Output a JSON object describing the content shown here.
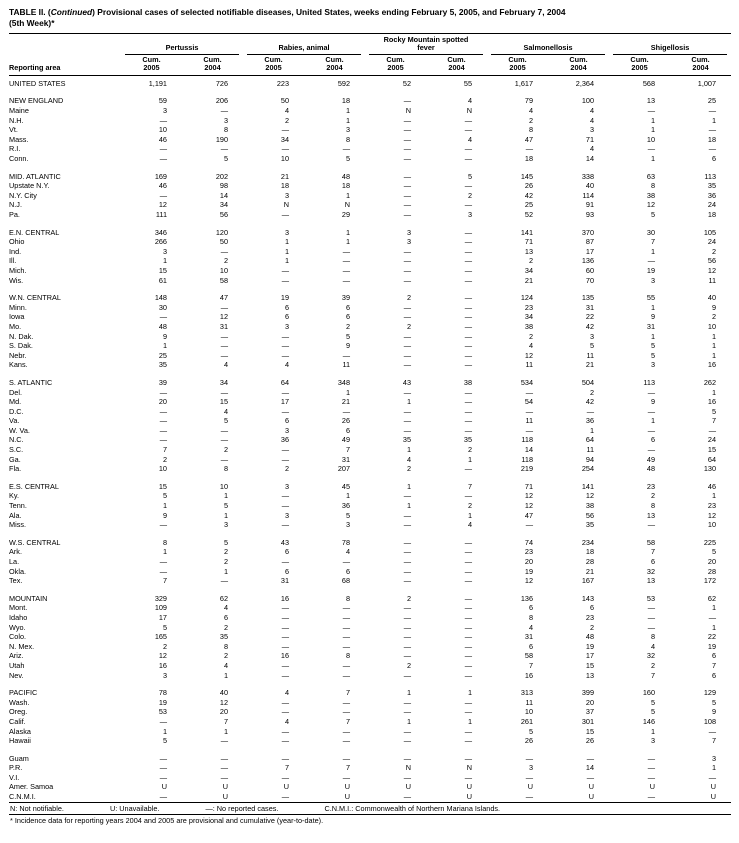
{
  "title": {
    "prefix": "TABLE II. (",
    "continued": "Continued",
    "rest": ") Provisional cases of selected notifiable diseases, United States, weeks ending February 5, 2005, and February 7, 2004",
    "week": "(5th Week)*"
  },
  "columns": {
    "reporting_area": "Reporting area",
    "groups": [
      "Pertussis",
      "Rabies, animal",
      "Rocky Mountain spotted fever",
      "Salmonellosis",
      "Shigellosis"
    ],
    "sub": {
      "label": "Cum.",
      "years": [
        "2005",
        "2004"
      ]
    }
  },
  "sections": [
    {
      "rows": [
        [
          "UNITED STATES",
          "1,191",
          "726",
          "223",
          "592",
          "52",
          "55",
          "1,617",
          "2,364",
          "568",
          "1,007"
        ]
      ]
    },
    {
      "rows": [
        [
          "NEW ENGLAND",
          "59",
          "206",
          "50",
          "18",
          "—",
          "4",
          "79",
          "100",
          "13",
          "25"
        ],
        [
          "Maine",
          "3",
          "—",
          "4",
          "1",
          "N",
          "N",
          "4",
          "4",
          "—",
          "—"
        ],
        [
          "N.H.",
          "—",
          "3",
          "2",
          "1",
          "—",
          "—",
          "2",
          "4",
          "1",
          "1"
        ],
        [
          "Vt.",
          "10",
          "8",
          "—",
          "3",
          "—",
          "—",
          "8",
          "3",
          "1",
          "—"
        ],
        [
          "Mass.",
          "46",
          "190",
          "34",
          "8",
          "—",
          "4",
          "47",
          "71",
          "10",
          "18"
        ],
        [
          "R.I.",
          "—",
          "—",
          "—",
          "—",
          "—",
          "—",
          "—",
          "4",
          "—",
          "—"
        ],
        [
          "Conn.",
          "—",
          "5",
          "10",
          "5",
          "—",
          "—",
          "18",
          "14",
          "1",
          "6"
        ]
      ]
    },
    {
      "rows": [
        [
          "MID. ATLANTIC",
          "169",
          "202",
          "21",
          "48",
          "—",
          "5",
          "145",
          "338",
          "63",
          "113"
        ],
        [
          "Upstate N.Y.",
          "46",
          "98",
          "18",
          "18",
          "—",
          "—",
          "26",
          "40",
          "8",
          "35"
        ],
        [
          "N.Y. City",
          "—",
          "14",
          "3",
          "1",
          "—",
          "2",
          "42",
          "114",
          "38",
          "36"
        ],
        [
          "N.J.",
          "12",
          "34",
          "N",
          "N",
          "—",
          "—",
          "25",
          "91",
          "12",
          "24"
        ],
        [
          "Pa.",
          "111",
          "56",
          "—",
          "29",
          "—",
          "3",
          "52",
          "93",
          "5",
          "18"
        ]
      ]
    },
    {
      "rows": [
        [
          "E.N. CENTRAL",
          "346",
          "120",
          "3",
          "1",
          "3",
          "—",
          "141",
          "370",
          "30",
          "105"
        ],
        [
          "Ohio",
          "266",
          "50",
          "1",
          "1",
          "3",
          "—",
          "71",
          "87",
          "7",
          "24"
        ],
        [
          "Ind.",
          "3",
          "—",
          "1",
          "—",
          "—",
          "—",
          "13",
          "17",
          "1",
          "2"
        ],
        [
          "Ill.",
          "1",
          "2",
          "1",
          "—",
          "—",
          "—",
          "2",
          "136",
          "—",
          "56"
        ],
        [
          "Mich.",
          "15",
          "10",
          "—",
          "—",
          "—",
          "—",
          "34",
          "60",
          "19",
          "12"
        ],
        [
          "Wis.",
          "61",
          "58",
          "—",
          "—",
          "—",
          "—",
          "21",
          "70",
          "3",
          "11"
        ]
      ]
    },
    {
      "rows": [
        [
          "W.N. CENTRAL",
          "148",
          "47",
          "19",
          "39",
          "2",
          "—",
          "124",
          "135",
          "55",
          "40"
        ],
        [
          "Minn.",
          "30",
          "—",
          "6",
          "6",
          "—",
          "—",
          "23",
          "31",
          "1",
          "9"
        ],
        [
          "Iowa",
          "—",
          "12",
          "6",
          "6",
          "—",
          "—",
          "34",
          "22",
          "9",
          "2"
        ],
        [
          "Mo.",
          "48",
          "31",
          "3",
          "2",
          "2",
          "—",
          "38",
          "42",
          "31",
          "10"
        ],
        [
          "N. Dak.",
          "9",
          "—",
          "—",
          "5",
          "—",
          "—",
          "2",
          "3",
          "1",
          "1"
        ],
        [
          "S. Dak.",
          "1",
          "—",
          "—",
          "9",
          "—",
          "—",
          "4",
          "5",
          "5",
          "1"
        ],
        [
          "Nebr.",
          "25",
          "—",
          "—",
          "—",
          "—",
          "—",
          "12",
          "11",
          "5",
          "1"
        ],
        [
          "Kans.",
          "35",
          "4",
          "4",
          "11",
          "—",
          "—",
          "11",
          "21",
          "3",
          "16"
        ]
      ]
    },
    {
      "rows": [
        [
          "S. ATLANTIC",
          "39",
          "34",
          "64",
          "348",
          "43",
          "38",
          "534",
          "504",
          "113",
          "262"
        ],
        [
          "Del.",
          "—",
          "—",
          "—",
          "1",
          "—",
          "—",
          "—",
          "2",
          "—",
          "1"
        ],
        [
          "Md.",
          "20",
          "15",
          "17",
          "21",
          "1",
          "—",
          "54",
          "42",
          "9",
          "16"
        ],
        [
          "D.C.",
          "—",
          "4",
          "—",
          "—",
          "—",
          "—",
          "—",
          "—",
          "—",
          "5"
        ],
        [
          "Va.",
          "—",
          "5",
          "6",
          "26",
          "—",
          "—",
          "11",
          "36",
          "1",
          "7"
        ],
        [
          "W. Va.",
          "—",
          "—",
          "3",
          "6",
          "—",
          "—",
          "—",
          "1",
          "—",
          "—"
        ],
        [
          "N.C.",
          "—",
          "—",
          "36",
          "49",
          "35",
          "35",
          "118",
          "64",
          "6",
          "24"
        ],
        [
          "S.C.",
          "7",
          "2",
          "—",
          "7",
          "1",
          "2",
          "14",
          "11",
          "—",
          "15"
        ],
        [
          "Ga.",
          "2",
          "—",
          "—",
          "31",
          "4",
          "1",
          "118",
          "94",
          "49",
          "64"
        ],
        [
          "Fla.",
          "10",
          "8",
          "2",
          "207",
          "2",
          "—",
          "219",
          "254",
          "48",
          "130"
        ]
      ]
    },
    {
      "rows": [
        [
          "E.S. CENTRAL",
          "15",
          "10",
          "3",
          "45",
          "1",
          "7",
          "71",
          "141",
          "23",
          "46"
        ],
        [
          "Ky.",
          "5",
          "1",
          "—",
          "1",
          "—",
          "—",
          "12",
          "12",
          "2",
          "1"
        ],
        [
          "Tenn.",
          "1",
          "5",
          "—",
          "36",
          "1",
          "2",
          "12",
          "38",
          "8",
          "23"
        ],
        [
          "Ala.",
          "9",
          "1",
          "3",
          "5",
          "—",
          "1",
          "47",
          "56",
          "13",
          "12"
        ],
        [
          "Miss.",
          "—",
          "3",
          "—",
          "3",
          "—",
          "4",
          "—",
          "35",
          "—",
          "10"
        ]
      ]
    },
    {
      "rows": [
        [
          "W.S. CENTRAL",
          "8",
          "5",
          "43",
          "78",
          "—",
          "—",
          "74",
          "234",
          "58",
          "225"
        ],
        [
          "Ark.",
          "1",
          "2",
          "6",
          "4",
          "—",
          "—",
          "23",
          "18",
          "7",
          "5"
        ],
        [
          "La.",
          "—",
          "2",
          "—",
          "—",
          "—",
          "—",
          "20",
          "28",
          "6",
          "20"
        ],
        [
          "Okla.",
          "—",
          "1",
          "6",
          "6",
          "—",
          "—",
          "19",
          "21",
          "32",
          "28"
        ],
        [
          "Tex.",
          "7",
          "—",
          "31",
          "68",
          "—",
          "—",
          "12",
          "167",
          "13",
          "172"
        ]
      ]
    },
    {
      "rows": [
        [
          "MOUNTAIN",
          "329",
          "62",
          "16",
          "8",
          "2",
          "—",
          "136",
          "143",
          "53",
          "62"
        ],
        [
          "Mont.",
          "109",
          "4",
          "—",
          "—",
          "—",
          "—",
          "6",
          "6",
          "—",
          "1"
        ],
        [
          "Idaho",
          "17",
          "6",
          "—",
          "—",
          "—",
          "—",
          "8",
          "23",
          "—",
          "—"
        ],
        [
          "Wyo.",
          "5",
          "2",
          "—",
          "—",
          "—",
          "—",
          "4",
          "2",
          "—",
          "1"
        ],
        [
          "Colo.",
          "165",
          "35",
          "—",
          "—",
          "—",
          "—",
          "31",
          "48",
          "8",
          "22"
        ],
        [
          "N. Mex.",
          "2",
          "8",
          "—",
          "—",
          "—",
          "—",
          "6",
          "19",
          "4",
          "19"
        ],
        [
          "Ariz.",
          "12",
          "2",
          "16",
          "8",
          "—",
          "—",
          "58",
          "17",
          "32",
          "6"
        ],
        [
          "Utah",
          "16",
          "4",
          "—",
          "—",
          "2",
          "—",
          "7",
          "15",
          "2",
          "7"
        ],
        [
          "Nev.",
          "3",
          "1",
          "—",
          "—",
          "—",
          "—",
          "16",
          "13",
          "7",
          "6"
        ]
      ]
    },
    {
      "rows": [
        [
          "PACIFIC",
          "78",
          "40",
          "4",
          "7",
          "1",
          "1",
          "313",
          "399",
          "160",
          "129"
        ],
        [
          "Wash.",
          "19",
          "12",
          "—",
          "—",
          "—",
          "—",
          "11",
          "20",
          "5",
          "5"
        ],
        [
          "Oreg.",
          "53",
          "20",
          "—",
          "—",
          "—",
          "—",
          "10",
          "37",
          "5",
          "9"
        ],
        [
          "Calif.",
          "—",
          "7",
          "4",
          "7",
          "1",
          "1",
          "261",
          "301",
          "146",
          "108"
        ],
        [
          "Alaska",
          "1",
          "1",
          "—",
          "—",
          "—",
          "—",
          "5",
          "15",
          "1",
          "—"
        ],
        [
          "Hawaii",
          "5",
          "—",
          "—",
          "—",
          "—",
          "—",
          "26",
          "26",
          "3",
          "7"
        ]
      ]
    },
    {
      "rows": [
        [
          "Guam",
          "—",
          "—",
          "—",
          "—",
          "—",
          "—",
          "—",
          "—",
          "—",
          "3"
        ],
        [
          "P.R.",
          "—",
          "—",
          "7",
          "7",
          "N",
          "N",
          "3",
          "14",
          "—",
          "1"
        ],
        [
          "V.I.",
          "—",
          "—",
          "—",
          "—",
          "—",
          "—",
          "—",
          "—",
          "—",
          "—"
        ],
        [
          "Amer. Samoa",
          "U",
          "U",
          "U",
          "U",
          "U",
          "U",
          "U",
          "U",
          "U",
          "U"
        ],
        [
          "C.N.M.I.",
          "—",
          "U",
          "—",
          "U",
          "—",
          "U",
          "—",
          "U",
          "—",
          "U"
        ]
      ]
    }
  ],
  "footnotes": {
    "keys": [
      "N: Not notifiable.",
      "U: Unavailable.",
      "—: No reported cases.",
      "C.N.M.I.: Commonwealth of Northern Mariana Islands."
    ],
    "note": "* Incidence data for reporting years 2004 and 2005 are provisional and cumulative (year-to-date)."
  }
}
